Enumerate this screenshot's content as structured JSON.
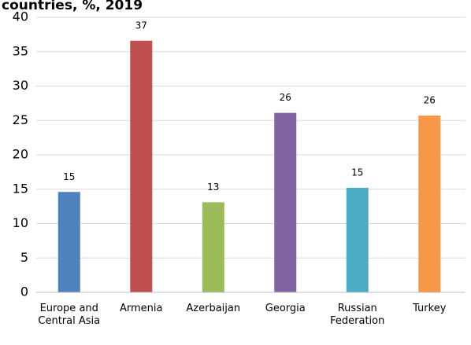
{
  "chart_data": {
    "type": "bar",
    "title": "countries, %, 2019",
    "categories": [
      "Europe and Central Asia",
      "Armenia",
      "Azerbaijan",
      "Georgia",
      "Russian Federation",
      "Turkey"
    ],
    "values": [
      14.6,
      36.6,
      13.1,
      26.1,
      15.2,
      25.7
    ],
    "value_labels": [
      "15",
      "37",
      "13",
      "26",
      "15",
      "26"
    ],
    "colors": [
      "#4f81bd",
      "#c0504d",
      "#9bbb59",
      "#8064a2",
      "#4bacc6",
      "#f79646"
    ],
    "ylim": [
      0,
      40
    ],
    "yticks": [
      0,
      5,
      10,
      15,
      20,
      25,
      30,
      35,
      40
    ],
    "grid": true
  }
}
